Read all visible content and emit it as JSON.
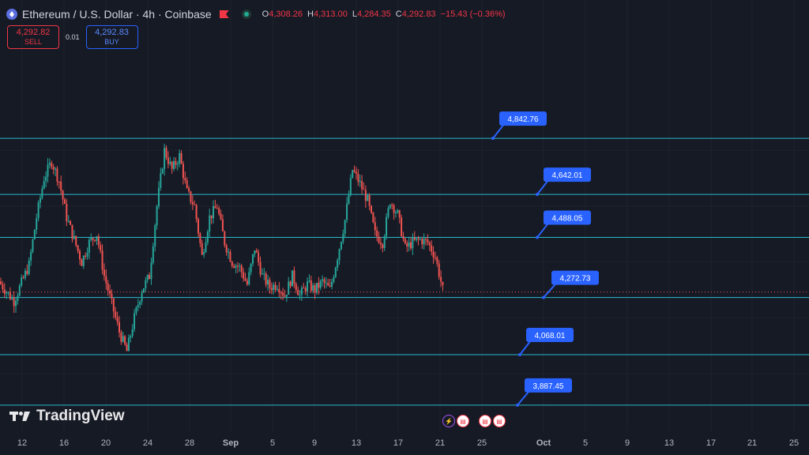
{
  "header": {
    "title": "Ethereum / U.S. Dollar · 4h · Coinbase",
    "ohlc": [
      {
        "k": "O",
        "v": "4,308.26"
      },
      {
        "k": "H",
        "v": "4,313.00"
      },
      {
        "k": "L",
        "v": "4,284.35"
      },
      {
        "k": "C",
        "v": "4,292.83"
      }
    ],
    "change": "−15.43 (−0.36%)"
  },
  "trade": {
    "sell_price": "4,292.82",
    "sell_label": "SELL",
    "spread": "0.01",
    "buy_price": "4,292.83",
    "buy_label": "BUY"
  },
  "brand": "TradingView",
  "colors": {
    "background": "#161a25",
    "up": "#26a69a",
    "down": "#ef5350",
    "level_line": "#26b8c9",
    "callout": "#2962ff",
    "grid": "#1e222d"
  },
  "chart_data": {
    "type": "candlestick",
    "series": "ETHUSD 4h",
    "xlabel": "",
    "ylabel": "",
    "x_ticks": [
      "12",
      "16",
      "20",
      "24",
      "28",
      "Sep",
      "5",
      "9",
      "13",
      "17",
      "21",
      "25",
      "Oct",
      "5",
      "9",
      "13",
      "17",
      "21",
      "25"
    ],
    "ylim": [
      3840,
      4960
    ],
    "last_price": 4292.83,
    "levels": [
      4842.76,
      4642.01,
      4488.05,
      4272.73,
      4068.01,
      3887.45
    ],
    "level_labels": [
      "4,842.76",
      "4,642.01",
      "4,488.05",
      "4,272.73",
      "4,068.01",
      "3,887.45"
    ],
    "price_path": [
      [
        0,
        4330
      ],
      [
        2,
        4260
      ],
      [
        4,
        4390
      ],
      [
        5,
        4560
      ],
      [
        6,
        4700
      ],
      [
        7,
        4760
      ],
      [
        8,
        4690
      ],
      [
        9,
        4560
      ],
      [
        10,
        4480
      ],
      [
        11,
        4400
      ],
      [
        12,
        4470
      ],
      [
        13,
        4500
      ],
      [
        14,
        4350
      ],
      [
        15,
        4250
      ],
      [
        16,
        4150
      ],
      [
        17,
        4080
      ],
      [
        18,
        4200
      ],
      [
        19,
        4300
      ],
      [
        20,
        4350
      ],
      [
        21,
        4600
      ],
      [
        22,
        4800
      ],
      [
        23,
        4730
      ],
      [
        24,
        4780
      ],
      [
        25,
        4650
      ],
      [
        26,
        4600
      ],
      [
        27,
        4420
      ],
      [
        28,
        4560
      ],
      [
        29,
        4600
      ],
      [
        30,
        4470
      ],
      [
        31,
        4400
      ],
      [
        32,
        4380
      ],
      [
        33,
        4320
      ],
      [
        34,
        4450
      ],
      [
        35,
        4350
      ],
      [
        36,
        4310
      ],
      [
        37,
        4320
      ],
      [
        38,
        4280
      ],
      [
        39,
        4350
      ],
      [
        40,
        4280
      ],
      [
        41,
        4320
      ],
      [
        42,
        4300
      ],
      [
        43,
        4330
      ],
      [
        44,
        4300
      ],
      [
        45,
        4420
      ],
      [
        46,
        4550
      ],
      [
        47,
        4730
      ],
      [
        48,
        4680
      ],
      [
        49,
        4620
      ],
      [
        50,
        4500
      ],
      [
        51,
        4470
      ],
      [
        52,
        4620
      ],
      [
        53,
        4570
      ],
      [
        54,
        4450
      ],
      [
        55,
        4470
      ],
      [
        56,
        4480
      ],
      [
        57,
        4470
      ],
      [
        58,
        4420
      ],
      [
        59,
        4300
      ]
    ]
  }
}
